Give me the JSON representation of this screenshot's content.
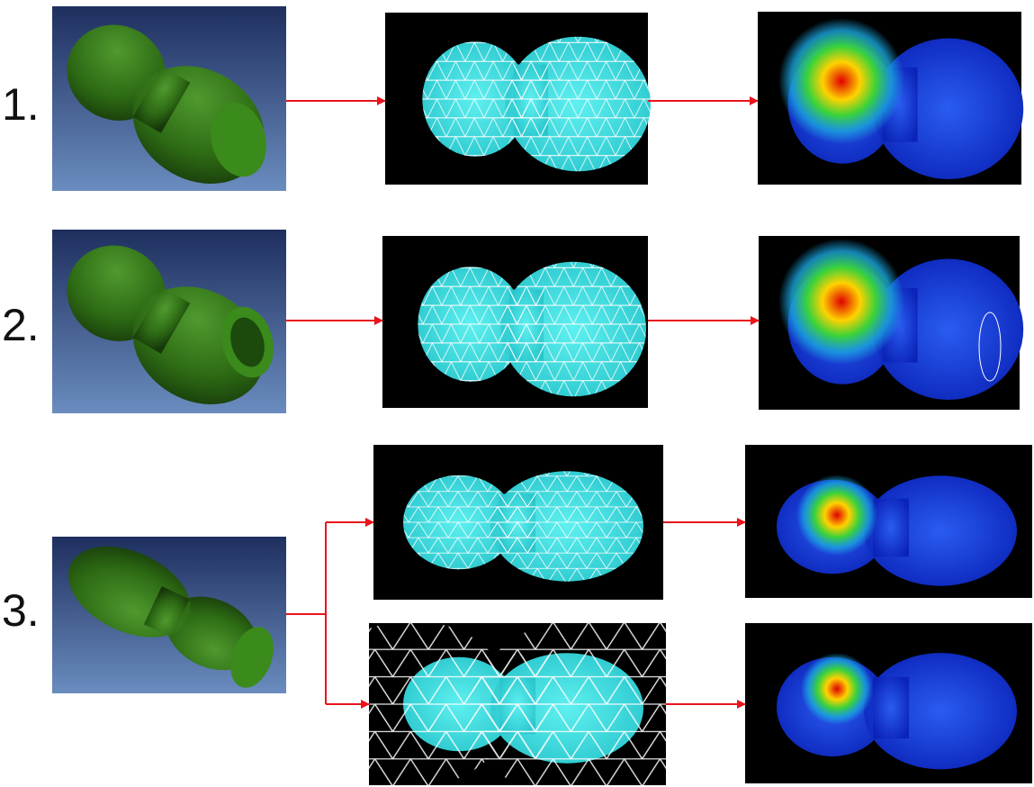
{
  "rows": [
    {
      "label": "1."
    },
    {
      "label": "2."
    },
    {
      "label": "3."
    }
  ]
}
